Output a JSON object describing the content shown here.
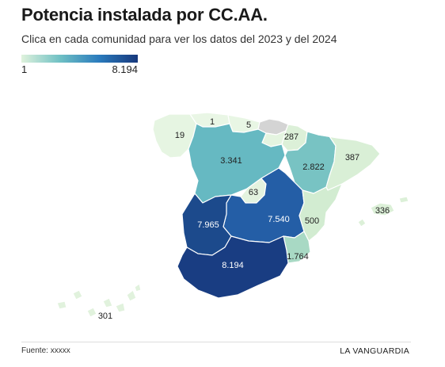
{
  "header": {
    "title": "Potencia instalada por CC.AA.",
    "subtitle": "Clica en cada comunidad para ver los datos del 2023 y del 2024"
  },
  "legend": {
    "min_label": "1",
    "max_label": "8.194",
    "colors": [
      "#dff2dc",
      "#6fc0c4",
      "#2a7bbd",
      "#17387c"
    ]
  },
  "regions": [
    {
      "name": "Galicia",
      "value_label": "19",
      "value": 19,
      "color": "#e6f5e2"
    },
    {
      "name": "Asturias",
      "value_label": "1",
      "value": 1,
      "color": "#e9f6e5"
    },
    {
      "name": "Cantabria",
      "value_label": "5",
      "value": 5,
      "color": "#e8f6e4"
    },
    {
      "name": "País Vasco",
      "value_label": "",
      "value": null,
      "color": "#d4d4d4"
    },
    {
      "name": "Navarra",
      "value_label": "287",
      "value": 287,
      "color": "#dcf0d8"
    },
    {
      "name": "La Rioja",
      "value_label": "",
      "value": null,
      "color": "#e4f4e0"
    },
    {
      "name": "Castilla y León",
      "value_label": "3.341",
      "value": 3341,
      "color": "#66b9c2"
    },
    {
      "name": "Aragón",
      "value_label": "2.822",
      "value": 2822,
      "color": "#78c3c3"
    },
    {
      "name": "Cataluña",
      "value_label": "387",
      "value": 387,
      "color": "#d9efd6"
    },
    {
      "name": "Madrid",
      "value_label": "63",
      "value": 63,
      "color": "#e3f3df"
    },
    {
      "name": "Castilla-La Mancha",
      "value_label": "7.540",
      "value": 7540,
      "color": "#245ea6"
    },
    {
      "name": "Extremadura",
      "value_label": "7.965",
      "value": 7965,
      "color": "#1c4a8c"
    },
    {
      "name": "Comunidad Valenciana",
      "value_label": "500",
      "value": 500,
      "color": "#d2ecd1"
    },
    {
      "name": "Murcia",
      "value_label": "1.764",
      "value": 1764,
      "color": "#a8d9c4"
    },
    {
      "name": "Andalucía",
      "value_label": "8.194",
      "value": 8194,
      "color": "#193d82"
    },
    {
      "name": "Islas Baleares",
      "value_label": "336",
      "value": 336,
      "color": "#dcf0d8"
    },
    {
      "name": "Canarias",
      "value_label": "301",
      "value": 301,
      "color": "#e1f2dd"
    }
  ],
  "footer": {
    "source": "Fuente: xxxxx",
    "brand": "LA VANGUARDIA"
  }
}
